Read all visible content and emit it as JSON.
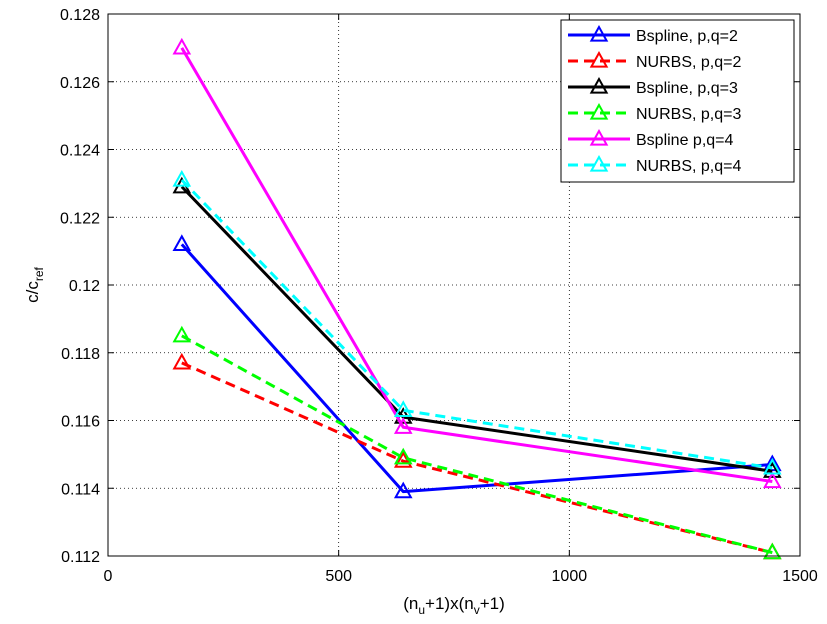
{
  "chart_data": {
    "type": "line",
    "xlabel": {
      "base": "(n",
      "sub1": "u",
      "mid": "+1)x(n",
      "sub2": "v",
      "end": "+1)"
    },
    "ylabel": {
      "base": "c/c",
      "sub": "ref"
    },
    "xlim": [
      0,
      1500
    ],
    "ylim": [
      0.112,
      0.128
    ],
    "x_ticks": [
      "0",
      "500",
      "1000",
      "1500"
    ],
    "y_ticks": [
      "0.112",
      "0.114",
      "0.116",
      "0.118",
      "0.12",
      "0.122",
      "0.124",
      "0.126",
      "0.128"
    ],
    "x_tick_values": [
      0,
      500,
      1000,
      1500
    ],
    "y_tick_values": [
      0.112,
      0.114,
      0.116,
      0.118,
      0.12,
      0.122,
      0.124,
      0.126,
      0.128
    ],
    "grid": true,
    "legend_position": "top-right",
    "x": [
      160,
      640,
      1440
    ],
    "series": [
      {
        "name": "Bspline, p,q=2",
        "values": [
          0.1212,
          0.1139,
          0.1147
        ],
        "color": "#0000ff",
        "dash": "solid"
      },
      {
        "name": "NURBS, p,q=2",
        "values": [
          0.1177,
          0.1148,
          0.1121
        ],
        "color": "#ff0000",
        "dash": "dashed"
      },
      {
        "name": "Bspline, p,q=3",
        "values": [
          0.1229,
          0.1161,
          0.1145
        ],
        "color": "#000000",
        "dash": "solid"
      },
      {
        "name": "NURBS, p,q=3",
        "values": [
          0.1185,
          0.1149,
          0.1121
        ],
        "color": "#00ff00",
        "dash": "dashed"
      },
      {
        "name": "Bspline p,q=4",
        "values": [
          0.127,
          0.1158,
          0.1142
        ],
        "color": "#ff00ff",
        "dash": "solid"
      },
      {
        "name": "NURBS, p,q=4",
        "values": [
          0.1231,
          0.1163,
          0.1146
        ],
        "color": "#00ffff",
        "dash": "dashed"
      }
    ]
  }
}
